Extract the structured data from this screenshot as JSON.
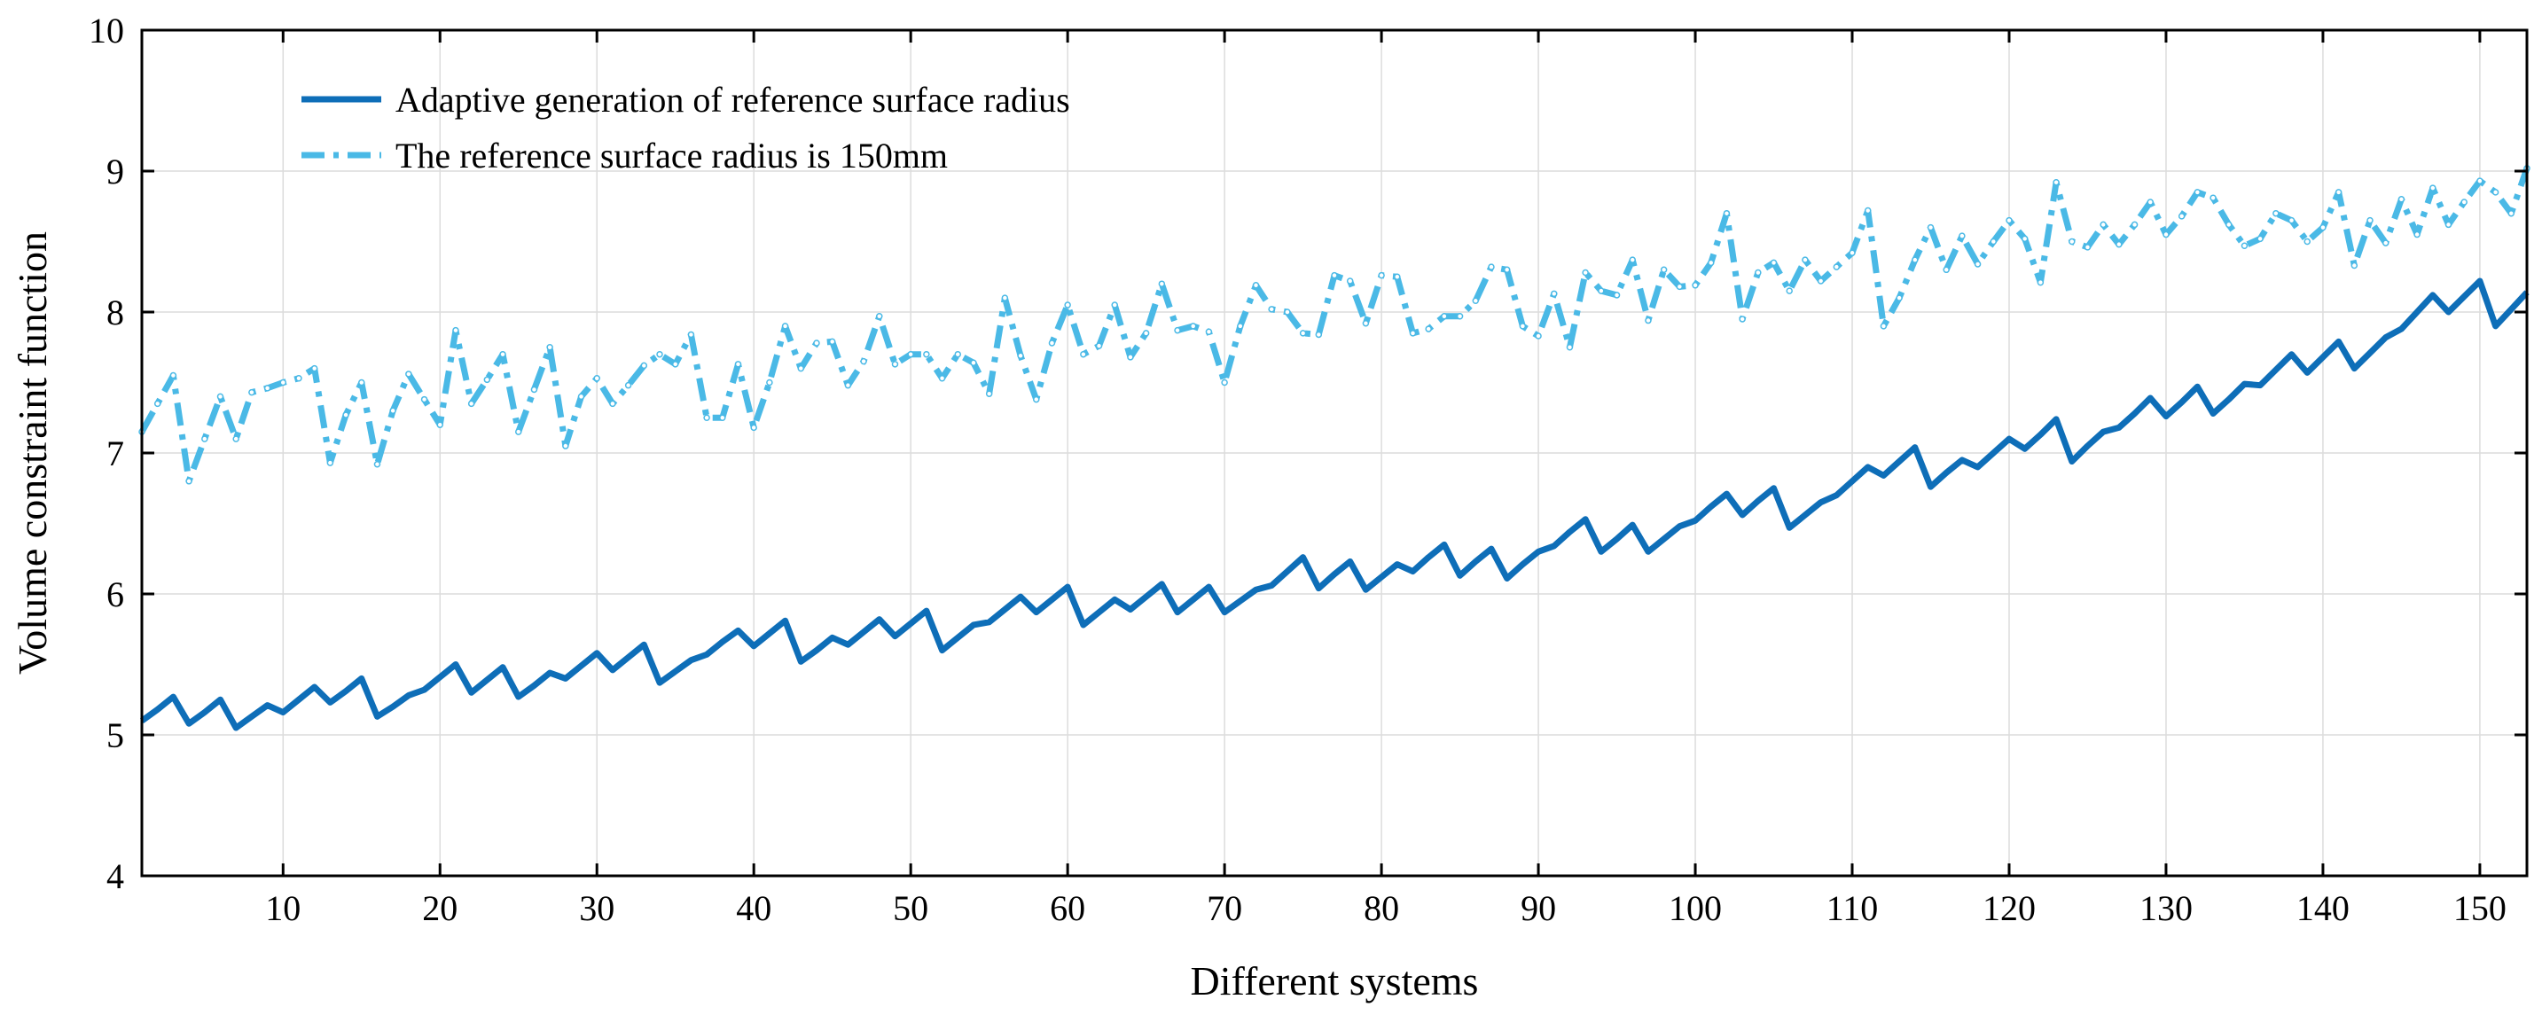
{
  "chart_data": {
    "type": "line",
    "title": "",
    "xlabel": "Different systems",
    "ylabel": "Volume constraint function",
    "xlim": [
      1,
      153
    ],
    "ylim": [
      4,
      10
    ],
    "xticks": [
      10,
      20,
      30,
      40,
      50,
      60,
      70,
      80,
      90,
      100,
      110,
      120,
      130,
      140,
      150
    ],
    "yticks": [
      4,
      5,
      6,
      7,
      8,
      9,
      10
    ],
    "grid": true,
    "legend_position": "top-left",
    "x": [
      1,
      2,
      3,
      4,
      5,
      6,
      7,
      8,
      9,
      10,
      11,
      12,
      13,
      14,
      15,
      16,
      17,
      18,
      19,
      20,
      21,
      22,
      23,
      24,
      25,
      26,
      27,
      28,
      29,
      30,
      31,
      32,
      33,
      34,
      35,
      36,
      37,
      38,
      39,
      40,
      41,
      42,
      43,
      44,
      45,
      46,
      47,
      48,
      49,
      50,
      51,
      52,
      53,
      54,
      55,
      56,
      57,
      58,
      59,
      60,
      61,
      62,
      63,
      64,
      65,
      66,
      67,
      68,
      69,
      70,
      71,
      72,
      73,
      74,
      75,
      76,
      77,
      78,
      79,
      80,
      81,
      82,
      83,
      84,
      85,
      86,
      87,
      88,
      89,
      90,
      91,
      92,
      93,
      94,
      95,
      96,
      97,
      98,
      99,
      100,
      101,
      102,
      103,
      104,
      105,
      106,
      107,
      108,
      109,
      110,
      111,
      112,
      113,
      114,
      115,
      116,
      117,
      118,
      119,
      120,
      121,
      122,
      123,
      124,
      125,
      126,
      127,
      128,
      129,
      130,
      131,
      132,
      133,
      134,
      135,
      136,
      137,
      138,
      139,
      140,
      141,
      142,
      143,
      144,
      145,
      146,
      147,
      148,
      149,
      150,
      151,
      152,
      153
    ],
    "series": [
      {
        "name": "Adaptive generation of reference surface radius",
        "color": "#0e6eb8",
        "style": "solid",
        "values": [
          5.1,
          5.18,
          5.27,
          5.08,
          5.16,
          5.25,
          5.05,
          5.13,
          5.21,
          5.16,
          5.25,
          5.34,
          5.23,
          5.31,
          5.4,
          5.13,
          5.2,
          5.28,
          5.32,
          5.41,
          5.5,
          5.3,
          5.39,
          5.48,
          5.27,
          5.35,
          5.44,
          5.4,
          5.49,
          5.58,
          5.46,
          5.55,
          5.64,
          5.37,
          5.45,
          5.53,
          5.57,
          5.66,
          5.74,
          5.63,
          5.72,
          5.81,
          5.52,
          5.6,
          5.69,
          5.64,
          5.73,
          5.82,
          5.7,
          5.79,
          5.88,
          5.6,
          5.69,
          5.78,
          5.8,
          5.89,
          5.98,
          5.87,
          5.96,
          6.05,
          5.78,
          5.87,
          5.96,
          5.89,
          5.98,
          6.07,
          5.87,
          5.96,
          6.05,
          5.87,
          5.95,
          6.03,
          6.06,
          6.16,
          6.26,
          6.04,
          6.14,
          6.23,
          6.03,
          6.12,
          6.21,
          6.16,
          6.26,
          6.35,
          6.13,
          6.23,
          6.32,
          6.11,
          6.21,
          6.3,
          6.34,
          6.44,
          6.53,
          6.3,
          6.39,
          6.49,
          6.3,
          6.39,
          6.48,
          6.52,
          6.62,
          6.71,
          6.56,
          6.66,
          6.75,
          6.47,
          6.56,
          6.65,
          6.7,
          6.8,
          6.9,
          6.84,
          6.94,
          7.04,
          6.76,
          6.86,
          6.95,
          6.9,
          7.0,
          7.1,
          7.03,
          7.13,
          7.24,
          6.94,
          7.05,
          7.15,
          7.18,
          7.28,
          7.39,
          7.26,
          7.36,
          7.47,
          7.28,
          7.38,
          7.49,
          7.48,
          7.59,
          7.7,
          7.57,
          7.68,
          7.79,
          7.6,
          7.71,
          7.82,
          7.88,
          8.0,
          8.12,
          8.0,
          8.11,
          8.22,
          7.9,
          8.02,
          8.14
        ]
      },
      {
        "name": "The reference surface radius is 150mm",
        "color": "#4ab9e6",
        "style": "dash-dot",
        "values": [
          7.15,
          7.35,
          7.55,
          6.8,
          7.1,
          7.4,
          7.1,
          7.43,
          7.46,
          7.5,
          7.53,
          7.6,
          6.93,
          7.27,
          7.5,
          6.92,
          7.3,
          7.56,
          7.38,
          7.2,
          7.87,
          7.35,
          7.52,
          7.7,
          7.15,
          7.45,
          7.75,
          7.05,
          7.4,
          7.53,
          7.35,
          7.48,
          7.62,
          7.7,
          7.63,
          7.84,
          7.25,
          7.25,
          7.63,
          7.18,
          7.5,
          7.9,
          7.6,
          7.78,
          7.79,
          7.48,
          7.65,
          7.97,
          7.63,
          7.7,
          7.7,
          7.53,
          7.7,
          7.64,
          7.42,
          8.1,
          7.69,
          7.38,
          7.78,
          8.05,
          7.7,
          7.76,
          8.05,
          7.68,
          7.85,
          8.2,
          7.87,
          7.9,
          7.86,
          7.5,
          7.9,
          8.19,
          8.02,
          8.0,
          7.85,
          7.84,
          8.26,
          8.22,
          7.92,
          8.26,
          8.25,
          7.85,
          7.88,
          7.97,
          7.97,
          8.08,
          8.32,
          8.3,
          7.9,
          7.83,
          8.13,
          7.75,
          8.28,
          8.15,
          8.12,
          8.37,
          7.94,
          8.3,
          8.18,
          8.19,
          8.35,
          8.7,
          7.95,
          8.28,
          8.35,
          8.15,
          8.37,
          8.22,
          8.32,
          8.42,
          8.72,
          7.9,
          8.1,
          8.37,
          8.6,
          8.3,
          8.54,
          8.34,
          8.5,
          8.65,
          8.52,
          8.21,
          8.92,
          8.5,
          8.46,
          8.62,
          8.48,
          8.62,
          8.78,
          8.55,
          8.68,
          8.85,
          8.81,
          8.62,
          8.47,
          8.52,
          8.7,
          8.65,
          8.5,
          8.6,
          8.85,
          8.33,
          8.65,
          8.49,
          8.8,
          8.55,
          8.88,
          8.62,
          8.78,
          8.93,
          8.85,
          8.7,
          9.02
        ]
      }
    ]
  }
}
